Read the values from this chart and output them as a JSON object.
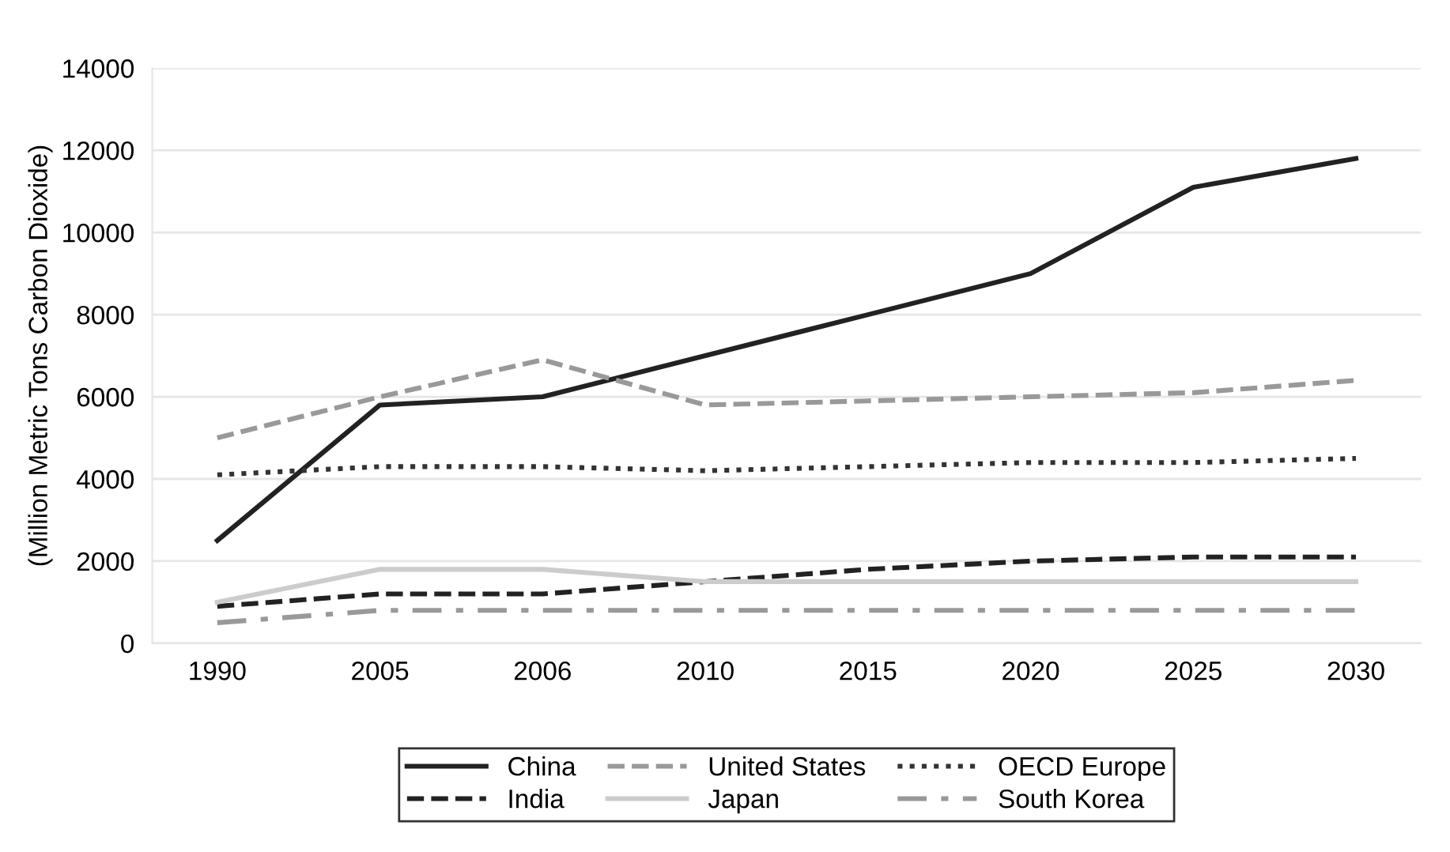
{
  "chart_data": {
    "type": "line",
    "ylabel": "(Million Metric Tons Carbon Dioxide)",
    "categories": [
      "1990",
      "2005",
      "2006",
      "2010",
      "2015",
      "2020",
      "2025",
      "2030"
    ],
    "series": [
      {
        "name": "China",
        "color": "#222222",
        "line_style": "solid",
        "values": [
          2500,
          5800,
          6000,
          7000,
          8000,
          9000,
          11100,
          11800
        ]
      },
      {
        "name": "United States",
        "color": "#999999",
        "line_style": "dashed",
        "values": [
          5000,
          6000,
          6900,
          5800,
          5900,
          6000,
          6100,
          6400
        ]
      },
      {
        "name": "OECD Europe",
        "color": "#333333",
        "line_style": "dotted",
        "values": [
          4100,
          4300,
          4300,
          4200,
          4300,
          4400,
          4400,
          4500
        ]
      },
      {
        "name": "India",
        "color": "#222222",
        "line_style": "dashed",
        "values": [
          900,
          1200,
          1200,
          1500,
          1800,
          2000,
          2100,
          2100
        ]
      },
      {
        "name": "Japan",
        "color": "#cccccc",
        "line_style": "solid",
        "values": [
          1000,
          1800,
          1800,
          1500,
          1500,
          1500,
          1500,
          1500
        ]
      },
      {
        "name": "South Korea",
        "color": "#999999",
        "line_style": "dashdot",
        "values": [
          500,
          800,
          800,
          800,
          800,
          800,
          800,
          800
        ]
      }
    ],
    "ylim": [
      0,
      14000
    ],
    "yticks": [
      0,
      2000,
      4000,
      6000,
      8000,
      10000,
      12000,
      14000
    ],
    "grid": "y",
    "legend": "bottom",
    "marker": "none"
  }
}
